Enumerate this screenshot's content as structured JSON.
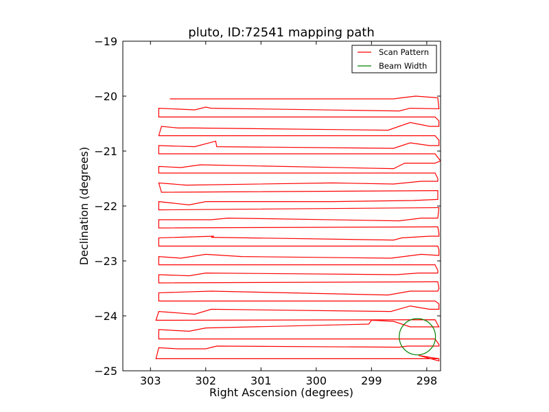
{
  "chart_data": {
    "type": "line",
    "title": "pluto, ID:72541 mapping path",
    "xlabel": "Right Ascension (degrees)",
    "ylabel": "Declination (degrees)",
    "xlim": [
      303.5,
      297.75
    ],
    "ylim": [
      -25,
      -19
    ],
    "x_inverted": true,
    "xticks": [
      303,
      302,
      301,
      300,
      299,
      298
    ],
    "xtick_labels": [
      "303",
      "302",
      "301",
      "300",
      "299",
      "298"
    ],
    "yticks": [
      -19,
      -20,
      -21,
      -22,
      -23,
      -24,
      -25
    ],
    "ytick_labels": [
      "−19",
      "−20",
      "−21",
      "−22",
      "−23",
      "−24",
      "−25"
    ],
    "legend": {
      "placement": "upper right",
      "entries": [
        {
          "label": "Scan Pattern",
          "color": "#ff0000"
        },
        {
          "label": "Beam Width",
          "color": "#008000"
        }
      ]
    },
    "series": [
      {
        "name": "Scan Pattern",
        "color": "#ff0000",
        "points": [
          [
            302.65,
            -20.05
          ],
          [
            298.6,
            -20.05
          ],
          [
            298.45,
            -20.03
          ],
          [
            298.2,
            -20.0
          ],
          [
            297.8,
            -20.03
          ],
          [
            297.78,
            -20.23
          ],
          [
            298.3,
            -20.22
          ],
          [
            298.5,
            -20.27
          ],
          [
            301.9,
            -20.22
          ],
          [
            302.0,
            -20.2
          ],
          [
            302.2,
            -20.25
          ],
          [
            302.85,
            -20.22
          ],
          [
            302.85,
            -20.38
          ],
          [
            297.85,
            -20.38
          ],
          [
            297.78,
            -20.45
          ],
          [
            297.78,
            -20.55
          ],
          [
            297.95,
            -20.55
          ],
          [
            298.3,
            -20.48
          ],
          [
            298.7,
            -20.62
          ],
          [
            302.2,
            -20.58
          ],
          [
            302.5,
            -20.58
          ],
          [
            302.8,
            -20.55
          ],
          [
            302.85,
            -20.72
          ],
          [
            297.85,
            -20.72
          ],
          [
            297.78,
            -20.8
          ],
          [
            297.78,
            -20.9
          ],
          [
            297.95,
            -20.9
          ],
          [
            298.3,
            -20.85
          ],
          [
            298.6,
            -20.95
          ],
          [
            301.8,
            -20.92
          ],
          [
            301.82,
            -20.82
          ],
          [
            302.2,
            -20.92
          ],
          [
            302.85,
            -20.9
          ],
          [
            302.85,
            -21.05
          ],
          [
            297.85,
            -21.05
          ],
          [
            297.75,
            -21.18
          ],
          [
            297.85,
            -21.22
          ],
          [
            298.4,
            -21.22
          ],
          [
            298.6,
            -21.32
          ],
          [
            302.1,
            -21.25
          ],
          [
            302.45,
            -21.3
          ],
          [
            302.85,
            -21.28
          ],
          [
            302.85,
            -21.4
          ],
          [
            297.85,
            -21.4
          ],
          [
            297.8,
            -21.5
          ],
          [
            297.8,
            -21.55
          ],
          [
            298.1,
            -21.55
          ],
          [
            298.6,
            -21.6
          ],
          [
            299.7,
            -21.58
          ],
          [
            302.35,
            -21.62
          ],
          [
            302.85,
            -21.58
          ],
          [
            302.8,
            -21.75
          ],
          [
            297.8,
            -21.72
          ],
          [
            297.8,
            -21.88
          ],
          [
            298.25,
            -21.9
          ],
          [
            299.7,
            -21.92
          ],
          [
            302.0,
            -21.92
          ],
          [
            302.3,
            -21.98
          ],
          [
            302.85,
            -21.92
          ],
          [
            302.85,
            -22.07
          ],
          [
            297.78,
            -22.03
          ],
          [
            297.8,
            -22.22
          ],
          [
            298.1,
            -22.22
          ],
          [
            298.5,
            -22.27
          ],
          [
            301.6,
            -22.22
          ],
          [
            301.9,
            -22.25
          ],
          [
            302.85,
            -22.25
          ],
          [
            302.85,
            -22.4
          ],
          [
            297.8,
            -22.38
          ],
          [
            297.78,
            -22.5
          ],
          [
            297.78,
            -22.55
          ],
          [
            297.95,
            -22.55
          ],
          [
            298.45,
            -22.58
          ],
          [
            298.6,
            -22.62
          ],
          [
            301.9,
            -22.57
          ],
          [
            301.85,
            -22.55
          ],
          [
            302.85,
            -22.58
          ],
          [
            302.85,
            -22.73
          ],
          [
            297.8,
            -22.73
          ],
          [
            297.78,
            -22.8
          ],
          [
            297.78,
            -22.9
          ],
          [
            298.1,
            -22.88
          ],
          [
            298.65,
            -22.95
          ],
          [
            301.35,
            -22.92
          ],
          [
            302.0,
            -22.88
          ],
          [
            302.45,
            -22.95
          ],
          [
            302.85,
            -22.92
          ],
          [
            302.85,
            -23.07
          ],
          [
            297.85,
            -23.07
          ],
          [
            297.8,
            -23.17
          ],
          [
            297.8,
            -23.22
          ],
          [
            298.15,
            -23.22
          ],
          [
            298.55,
            -23.25
          ],
          [
            302.0,
            -23.22
          ],
          [
            302.3,
            -23.27
          ],
          [
            302.85,
            -23.25
          ],
          [
            302.85,
            -23.4
          ],
          [
            297.8,
            -23.38
          ],
          [
            297.78,
            -23.5
          ],
          [
            297.8,
            -23.55
          ],
          [
            298.3,
            -23.55
          ],
          [
            298.7,
            -23.62
          ],
          [
            301.9,
            -23.55
          ],
          [
            302.85,
            -23.58
          ],
          [
            302.85,
            -23.73
          ],
          [
            297.85,
            -23.73
          ],
          [
            297.78,
            -23.78
          ],
          [
            297.78,
            -23.88
          ],
          [
            297.95,
            -23.88
          ],
          [
            298.3,
            -23.82
          ],
          [
            298.65,
            -23.92
          ],
          [
            301.9,
            -23.88
          ],
          [
            302.2,
            -23.97
          ],
          [
            302.85,
            -23.92
          ],
          [
            302.9,
            -24.08
          ],
          [
            297.85,
            -24.07
          ],
          [
            297.78,
            -24.2
          ],
          [
            298.3,
            -24.2
          ],
          [
            298.6,
            -24.1
          ],
          [
            299.0,
            -24.08
          ],
          [
            299.05,
            -24.15
          ],
          [
            302.0,
            -24.22
          ],
          [
            302.3,
            -24.28
          ],
          [
            302.85,
            -24.25
          ],
          [
            302.85,
            -24.42
          ],
          [
            297.85,
            -24.42
          ],
          [
            297.78,
            -24.52
          ],
          [
            297.78,
            -24.55
          ],
          [
            298.35,
            -24.55
          ],
          [
            298.5,
            -24.57
          ],
          [
            301.8,
            -24.55
          ],
          [
            302.0,
            -24.6
          ],
          [
            302.5,
            -24.6
          ],
          [
            302.85,
            -24.58
          ],
          [
            302.9,
            -24.78
          ],
          [
            297.78,
            -24.78
          ],
          [
            297.78,
            -24.82
          ],
          [
            298.15,
            -24.72
          ],
          [
            297.78,
            -24.78
          ]
        ]
      },
      {
        "name": "Beam Width",
        "color": "#008000",
        "shape": "circle",
        "center": [
          298.17,
          -24.38
        ],
        "radius_deg": 0.33
      }
    ]
  }
}
